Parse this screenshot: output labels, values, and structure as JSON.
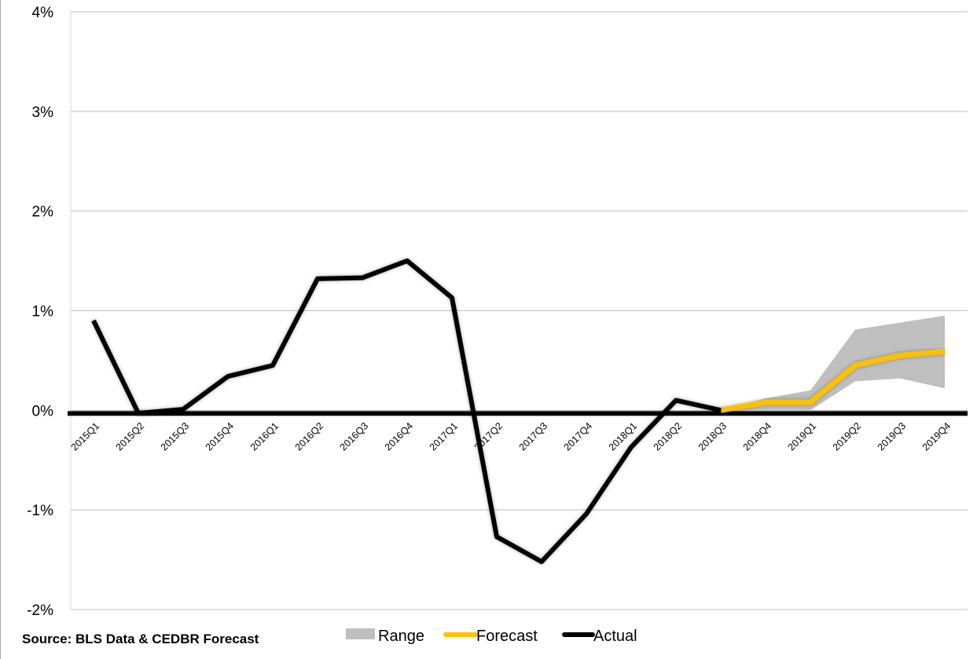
{
  "chart_data": {
    "type": "line",
    "title": "",
    "xlabel": "",
    "ylabel": "",
    "ylim": [
      -2,
      4
    ],
    "y_ticks": [
      4,
      3,
      2,
      1,
      0,
      -1,
      -2
    ],
    "y_tick_labels": [
      "4%",
      "3%",
      "2%",
      "1%",
      "0%",
      "-1%",
      "-2%"
    ],
    "grid": "horizontal",
    "categories": [
      "2015Q1",
      "2015Q2",
      "2015Q3",
      "2015Q4",
      "2016Q1",
      "2016Q2",
      "2016Q3",
      "2016Q4",
      "2017Q1",
      "2017Q2",
      "2017Q3",
      "2017Q4",
      "2018Q1",
      "2018Q2",
      "2018Q3",
      "2018Q4",
      "2019Q1",
      "2019Q2",
      "2019Q3",
      "2019Q4"
    ],
    "series": [
      {
        "name": "Range",
        "kind": "band",
        "color": "#bfbfbf",
        "low": [
          null,
          null,
          null,
          null,
          null,
          null,
          null,
          null,
          null,
          null,
          null,
          null,
          null,
          null,
          0.0,
          0.0,
          0.0,
          0.29,
          0.32,
          0.22
        ],
        "high": [
          null,
          null,
          null,
          null,
          null,
          null,
          null,
          null,
          null,
          null,
          null,
          null,
          null,
          null,
          0.0,
          0.12,
          0.2,
          0.81,
          0.88,
          0.95
        ]
      },
      {
        "name": "Forecast",
        "kind": "line",
        "color": "#ffc000",
        "values": [
          null,
          null,
          null,
          null,
          null,
          null,
          null,
          null,
          null,
          null,
          null,
          null,
          null,
          null,
          0.0,
          0.08,
          0.08,
          0.45,
          0.55,
          0.59
        ]
      },
      {
        "name": "Actual",
        "kind": "line",
        "color": "#000000",
        "values": [
          0.9,
          -0.03,
          0.01,
          0.34,
          0.45,
          1.32,
          1.33,
          1.5,
          1.13,
          -1.27,
          -1.52,
          -1.04,
          -0.37,
          0.1,
          0.0,
          null,
          null,
          null,
          null,
          null
        ]
      }
    ],
    "legend": [
      "Range",
      "Forecast",
      "Actual"
    ],
    "legend_position": "bottom-center",
    "source_note": "Source: BLS Data & CEDBR Forecast"
  }
}
